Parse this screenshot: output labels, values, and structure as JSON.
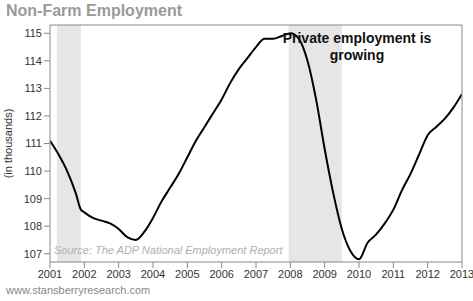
{
  "chart_data": {
    "type": "line",
    "title": "Non-Farm Employment",
    "y_label": "(in thousands)",
    "annotation": "Private employment is growing",
    "source": "Source: The ADP National Employment Report",
    "footer": "www.stansberryresearch.com",
    "x": [
      2001.0,
      2001.25,
      2001.5,
      2001.75,
      2001.9,
      2002.0,
      2002.25,
      2002.5,
      2002.75,
      2003.0,
      2003.25,
      2003.5,
      2003.75,
      2004.0,
      2004.25,
      2004.5,
      2004.75,
      2005.0,
      2005.25,
      2005.5,
      2005.75,
      2006.0,
      2006.25,
      2006.5,
      2006.75,
      2007.0,
      2007.25,
      2007.5,
      2007.75,
      2008.0,
      2008.25,
      2008.5,
      2008.75,
      2009.0,
      2009.25,
      2009.5,
      2009.75,
      2010.0,
      2010.25,
      2010.5,
      2010.75,
      2011.0,
      2011.25,
      2011.5,
      2011.75,
      2012.0,
      2012.25,
      2012.5,
      2012.75,
      2013.0
    ],
    "values": [
      111.1,
      110.6,
      110.0,
      109.2,
      108.6,
      108.5,
      108.3,
      108.2,
      108.1,
      107.9,
      107.6,
      107.5,
      107.8,
      108.3,
      108.9,
      109.4,
      109.9,
      110.5,
      111.1,
      111.6,
      112.1,
      112.6,
      113.2,
      113.7,
      114.1,
      114.5,
      114.8,
      114.8,
      114.9,
      115.0,
      114.8,
      114.0,
      112.6,
      110.8,
      109.2,
      107.9,
      107.1,
      106.8,
      107.4,
      107.7,
      108.1,
      108.6,
      109.3,
      109.9,
      110.6,
      111.3,
      111.6,
      111.9,
      112.3,
      112.8
    ],
    "color": "#000000",
    "recessions": [
      [
        2001.2,
        2001.9
      ],
      [
        2007.95,
        2009.5
      ]
    ],
    "recession_color": "#e6e6e6",
    "xlim": [
      2001,
      2013
    ],
    "xticks": [
      2001,
      2002,
      2003,
      2004,
      2005,
      2006,
      2007,
      2008,
      2009,
      2010,
      2011,
      2012,
      2013
    ],
    "ylim": [
      106.7,
      115.3
    ],
    "yticks": [
      107,
      108,
      109,
      110,
      111,
      112,
      113,
      114,
      115
    ],
    "grid": false
  }
}
